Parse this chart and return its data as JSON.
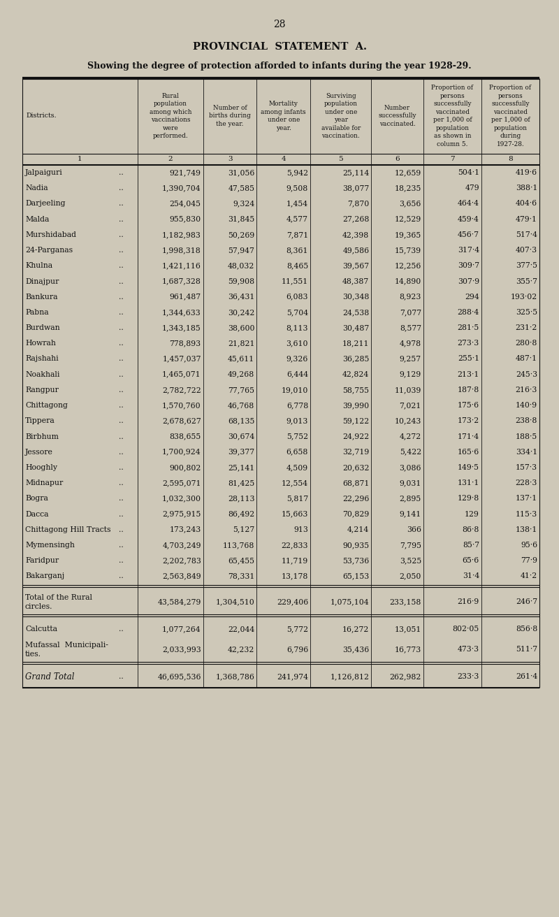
{
  "page_number": "28",
  "title": "PROVINCIAL  STATEMENT  A.",
  "subtitle": "Showing the degree of protection afforded to infants during the year 1928-29.",
  "col_headers_line1": [
    "Districts.",
    "Rural\npopulation\namong which\nvaccinations\nwere\nperformed.",
    "Number of\nbirths during\nthe year.",
    "Mortality\namong infants\nunder one\nyear.",
    "Surviving\npopulation\nunder one\nyear\navailable for\nvaccination.",
    "Number\nsuccessfully\nvaccinated.",
    "Proportion of\npersons\nsuccessfully\nvaccinated\nper 1,000 of\npopulation\nas shown in\ncolumn 5.",
    "Proportion of\npersons\nsuccessfully\nvaccinated\nper 1,000 of\npopulation\nduring\n1927-28."
  ],
  "col_numbers": [
    "1",
    "2",
    "3",
    "4",
    "5",
    "6",
    "7",
    "8"
  ],
  "rows": [
    [
      "Jalpaiguri",
      "921,749",
      "31,056",
      "5,942",
      "25,114",
      "12,659",
      "504·1",
      "419·6"
    ],
    [
      "Nadia",
      "1,390,704",
      "47,585",
      "9,508",
      "38,077",
      "18,235",
      "479",
      "388·1"
    ],
    [
      "Darjeeling",
      "254,045",
      "9,324",
      "1,454",
      "7,870",
      "3,656",
      "464·4",
      "404·6"
    ],
    [
      "Malda",
      "955,830",
      "31,845",
      "4,577",
      "27,268",
      "12,529",
      "459·4",
      "479·1"
    ],
    [
      "Murshidabad",
      "1,182,983",
      "50,269",
      "7,871",
      "42,398",
      "19,365",
      "456·7",
      "517·4"
    ],
    [
      "24-Parganas",
      "1,998,318",
      "57,947",
      "8,361",
      "49,586",
      "15,739",
      "317·4",
      "407·3"
    ],
    [
      "Khulna",
      "1,421,116",
      "48,032",
      "8,465",
      "39,567",
      "12,256",
      "309·7",
      "377·5"
    ],
    [
      "Dinajpur",
      "1,687,328",
      "59,908",
      "11,551",
      "48,387",
      "14,890",
      "307·9",
      "355·7"
    ],
    [
      "Bankura",
      "961,487",
      "36,431",
      "6,083",
      "30,348",
      "8,923",
      "294",
      "193·02"
    ],
    [
      "Pabna",
      "1,344,633",
      "30,242",
      "5,704",
      "24,538",
      "7,077",
      "288·4",
      "325·5"
    ],
    [
      "Burdwan",
      "1,343,185",
      "38,600",
      "8,113",
      "30,487",
      "8,577",
      "281·5",
      "231·2"
    ],
    [
      "Howrah",
      "778,893",
      "21,821",
      "3,610",
      "18,211",
      "4,978",
      "273·3",
      "280·8"
    ],
    [
      "Rajshahi",
      "1,457,037",
      "45,611",
      "9,326",
      "36,285",
      "9,257",
      "255·1",
      "487·1"
    ],
    [
      "Noakhali",
      "1,465,071",
      "49,268",
      "6,444",
      "42,824",
      "9,129",
      "213·1",
      "245·3"
    ],
    [
      "Rangpur",
      "2,782,722",
      "77,765",
      "19,010",
      "58,755",
      "11,039",
      "187·8",
      "216·3"
    ],
    [
      "Chittagong",
      "1,570,760",
      "46,768",
      "6,778",
      "39,990",
      "7,021",
      "175·6",
      "140·9"
    ],
    [
      "Tippera",
      "2,678,627",
      "68,135",
      "9,013",
      "59,122",
      "10,243",
      "173·2",
      "238·8"
    ],
    [
      "Birbhum",
      "838,655",
      "30,674",
      "5,752",
      "24,922",
      "4,272",
      "171·4",
      "188·5"
    ],
    [
      "Jessore",
      "1,700,924",
      "39,377",
      "6,658",
      "32,719",
      "5,422",
      "165·6",
      "334·1"
    ],
    [
      "Hooghly",
      "900,802",
      "25,141",
      "4,509",
      "20,632",
      "3,086",
      "149·5",
      "157·3"
    ],
    [
      "Midnapur",
      "2,595,071",
      "81,425",
      "12,554",
      "68,871",
      "9,031",
      "131·1",
      "228·3"
    ],
    [
      "Bogra",
      "1,032,300",
      "28,113",
      "5,817",
      "22,296",
      "2,895",
      "129·8",
      "137·1"
    ],
    [
      "Dacca",
      "2,975,915",
      "86,492",
      "15,663",
      "70,829",
      "9,141",
      "129",
      "115·3"
    ],
    [
      "Chittagong Hill Tracts",
      "173,243",
      "5,127",
      "913",
      "4,214",
      "366",
      "86·8",
      "138·1"
    ],
    [
      "Mymensingh",
      "4,703,249",
      "113,768",
      "22,833",
      "90,935",
      "7,795",
      "85·7",
      "95·6"
    ],
    [
      "Faridpur",
      "2,202,783",
      "65,455",
      "11,719",
      "53,736",
      "3,525",
      "65·6",
      "77·9"
    ],
    [
      "Bakarganj",
      "2,563,849",
      "78,331",
      "13,178",
      "65,153",
      "2,050",
      "31·4",
      "41·2"
    ]
  ],
  "subtotal_row": [
    "Total of the Rural\ncircles.",
    "43,584,279",
    "1,304,510",
    "229,406",
    "1,075,104",
    "233,158",
    "216·9",
    "246·7"
  ],
  "extra_rows": [
    [
      "Calcutta",
      "1,077,264",
      "22,044",
      "5,772",
      "16,272",
      "13,051",
      "802·05",
      "856·8"
    ],
    [
      "Mufassal  Municipali-\nties.",
      "2,033,993",
      "42,232",
      "6,796",
      "35,436",
      "16,773",
      "473·3",
      "511·7"
    ]
  ],
  "grand_total_row": [
    "Grand Total",
    "46,695,536",
    "1,368,786",
    "241,974",
    "1,126,812",
    "262,982",
    "233·3",
    "261·4"
  ],
  "bg_color": "#cec8b8",
  "text_color": "#111111"
}
